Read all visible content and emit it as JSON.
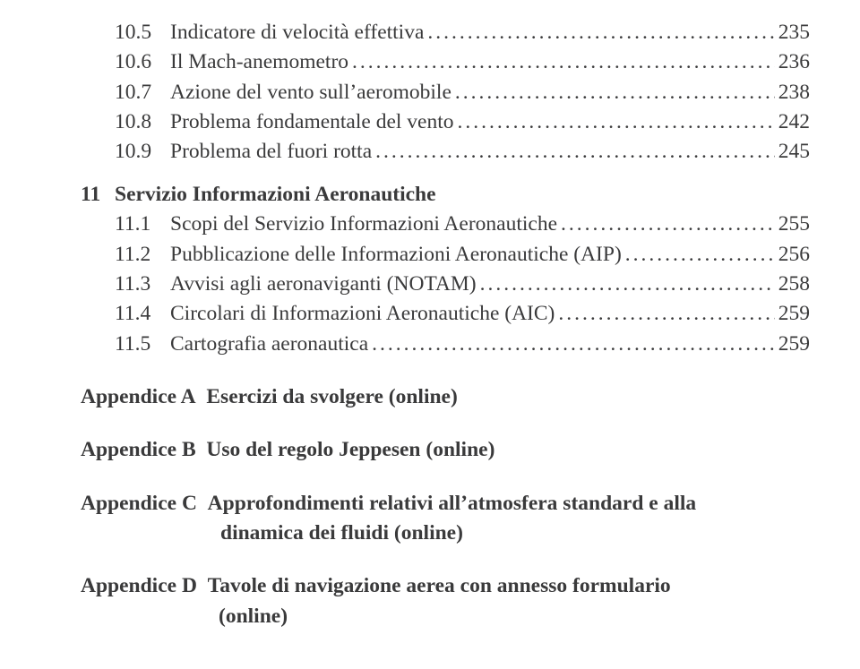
{
  "text_color": "#3a3a3b",
  "background_color": "#ffffff",
  "font_family": "Times New Roman",
  "base_fontsize_pt": 18,
  "sections10": [
    {
      "num": "10.5",
      "title": "Indicatore di velocità effettiva",
      "page": "235"
    },
    {
      "num": "10.6",
      "title": "Il Mach-anemometro",
      "page": "236"
    },
    {
      "num": "10.7",
      "title": "Azione del vento sull’aeromobile",
      "page": "238"
    },
    {
      "num": "10.8",
      "title": "Problema fondamentale del vento",
      "page": "242"
    },
    {
      "num": "10.9",
      "title": "Problema del fuori rotta",
      "page": "245"
    }
  ],
  "chapter11": {
    "num": "11",
    "title": "Servizio Informazioni Aeronautiche",
    "page": ""
  },
  "sections11": [
    {
      "num": "11.1",
      "title": "Scopi del Servizio Informazioni Aeronautiche",
      "page": "255"
    },
    {
      "num": "11.2",
      "title": "Pubblicazione delle Informazioni Aeronautiche (AIP)",
      "page": "256"
    },
    {
      "num": "11.3",
      "title": "Avvisi agli aeronaviganti (NOTAM)",
      "page": "258"
    },
    {
      "num": "11.4",
      "title": "Circolari di Informazioni Aeronautiche (AIC)",
      "page": "259"
    },
    {
      "num": "11.5",
      "title": "Cartografia aeronautica",
      "page": "259"
    }
  ],
  "appendices": {
    "a": {
      "label": "Appendice A",
      "title": "Esercizi da svolgere (online)"
    },
    "b": {
      "label": "Appendice B",
      "title": "Uso del regolo Jeppesen (online)"
    },
    "c": {
      "label": "Appendice C",
      "line1": "Approfondimenti relativi all’atmosfera standard e alla",
      "line2": "dinamica dei fluidi (online)"
    },
    "d": {
      "label": "Appendice D",
      "line1": "Tavole  di  navigazione  aerea  con  annesso  formulario",
      "line2": "(online)"
    }
  },
  "leader_char": "."
}
